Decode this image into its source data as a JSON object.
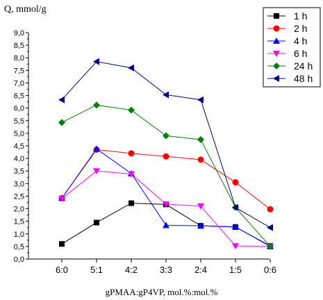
{
  "chart_data": {
    "type": "line",
    "ylabel": "Q, mmol/g",
    "xlabel": "gPMAA:gP4VP, mol.%:mol.%",
    "categories": [
      "6:0",
      "5:1",
      "4:2",
      "3:3",
      "2:4",
      "1:5",
      "0:6"
    ],
    "ylim": [
      0,
      9
    ],
    "yticks": [
      "0,0",
      "0,5",
      "1,0",
      "1,5",
      "2,0",
      "2,5",
      "3,0",
      "3,5",
      "4,0",
      "4,5",
      "5,0",
      "5,5",
      "6,0",
      "6,5",
      "7,0",
      "7,5",
      "8,0",
      "8,5",
      "9,0"
    ],
    "legend_position": "top-right",
    "series": [
      {
        "name": "1 h",
        "color": "#000000",
        "marker": "square",
        "values": [
          0.6,
          1.45,
          2.22,
          2.17,
          1.32,
          1.27,
          0.52
        ]
      },
      {
        "name": "2 h",
        "color": "#ff0000",
        "marker": "circle",
        "values": [
          2.42,
          4.35,
          4.2,
          4.08,
          3.95,
          3.05,
          1.98
        ]
      },
      {
        "name": "4 h",
        "color": "#0000ff",
        "marker": "triangle-up",
        "values": [
          2.42,
          4.38,
          3.4,
          1.34,
          1.32,
          1.28,
          0.5
        ]
      },
      {
        "name": "6 h",
        "color": "#ff00ff",
        "marker": "triangle-down",
        "values": [
          2.4,
          3.5,
          3.38,
          2.18,
          2.1,
          0.52,
          0.5
        ]
      },
      {
        "name": "24 h",
        "color": "#008000",
        "marker": "diamond",
        "values": [
          5.43,
          6.12,
          5.92,
          4.9,
          4.75,
          2.05,
          0.5
        ]
      },
      {
        "name": "48 h",
        "color": "#000080",
        "marker": "triangle-left",
        "values": [
          6.33,
          7.85,
          7.6,
          6.53,
          6.33,
          2.05,
          1.25
        ]
      }
    ]
  }
}
